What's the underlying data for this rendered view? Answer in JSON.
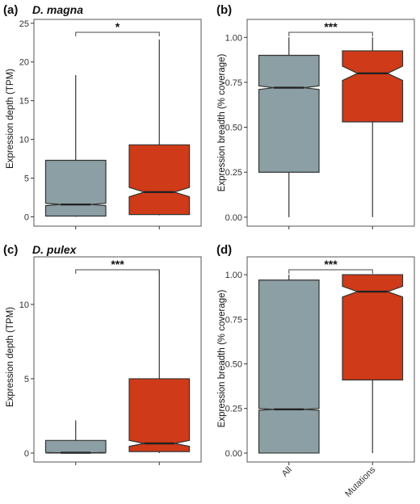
{
  "colors": {
    "all": "#8b9fa4",
    "mutations": "#cf3a18",
    "axis": "#333333"
  },
  "chart_data": [
    {
      "type": "box",
      "panel_label": "(a)",
      "species": "D. magna",
      "ylabel": "Expression depth (TPM)",
      "ylim": [
        -1.2,
        25.5
      ],
      "yticks": [
        0,
        5,
        10,
        15,
        20,
        25
      ],
      "yticklabels": [
        "0",
        "5",
        "10",
        "15",
        "20",
        "25"
      ],
      "categories": [
        "All",
        "Mutations"
      ],
      "show_xticklabels": false,
      "significance": "*",
      "boxes": [
        {
          "name": "All",
          "min": 0,
          "q1": 0.1,
          "median": 1.6,
          "q3": 7.3,
          "max": 18.3,
          "notch": [
            1.45,
            1.75
          ]
        },
        {
          "name": "Mutations",
          "min": 0.2,
          "q1": 0.3,
          "median": 3.2,
          "q3": 9.3,
          "max": 22.9,
          "notch": [
            2.6,
            3.8
          ]
        }
      ]
    },
    {
      "type": "box",
      "panel_label": "(b)",
      "species": "",
      "ylabel": "Expression breadth (% coverage)",
      "ylim": [
        -0.05,
        1.1
      ],
      "yticks": [
        0,
        0.25,
        0.5,
        0.75,
        1.0
      ],
      "yticklabels": [
        "0.00",
        "0.25",
        "0.50",
        "0.75",
        "1.00"
      ],
      "categories": [
        "All",
        "Mutations"
      ],
      "show_xticklabels": false,
      "significance": "***",
      "boxes": [
        {
          "name": "All",
          "min": 0,
          "q1": 0.25,
          "median": 0.72,
          "q3": 0.9,
          "max": 1.0,
          "notch": [
            0.71,
            0.73
          ]
        },
        {
          "name": "Mutations",
          "min": 0,
          "q1": 0.53,
          "median": 0.8,
          "q3": 0.925,
          "max": 1.0,
          "notch": [
            0.76,
            0.84
          ]
        }
      ]
    },
    {
      "type": "box",
      "panel_label": "(c)",
      "species": "D. pulex",
      "ylabel": "Expression depth (TPM)",
      "ylim": [
        -0.6,
        13.2
      ],
      "yticks": [
        0,
        5,
        10
      ],
      "yticklabels": [
        "0",
        "5",
        "10"
      ],
      "categories": [
        "All",
        "Mutations"
      ],
      "show_xticklabels": false,
      "significance": "***",
      "boxes": [
        {
          "name": "All",
          "min": 0,
          "q1": 0.0,
          "median": 0.02,
          "q3": 0.85,
          "max": 2.2,
          "notch": [
            0.0,
            0.04
          ]
        },
        {
          "name": "Mutations",
          "min": 0,
          "q1": 0.1,
          "median": 0.65,
          "q3": 5.0,
          "max": 12.3,
          "notch": [
            0.45,
            0.85
          ]
        }
      ]
    },
    {
      "type": "box",
      "panel_label": "(d)",
      "species": "",
      "ylabel": "Expression breadth (% coverage)",
      "ylim": [
        -0.05,
        1.1
      ],
      "yticks": [
        0,
        0.25,
        0.5,
        0.75,
        1.0
      ],
      "yticklabels": [
        "0.00",
        "0.25",
        "0.50",
        "0.75",
        "1.00"
      ],
      "categories": [
        "All",
        "Mutations"
      ],
      "show_xticklabels": true,
      "significance": "***",
      "boxes": [
        {
          "name": "All",
          "min": 0,
          "q1": 0.0,
          "median": 0.245,
          "q3": 0.97,
          "max": 1.0,
          "notch": [
            0.24,
            0.25
          ]
        },
        {
          "name": "Mutations",
          "min": 0,
          "q1": 0.41,
          "median": 0.905,
          "q3": 1.0,
          "max": 1.0,
          "notch": [
            0.875,
            0.935
          ]
        }
      ]
    }
  ]
}
